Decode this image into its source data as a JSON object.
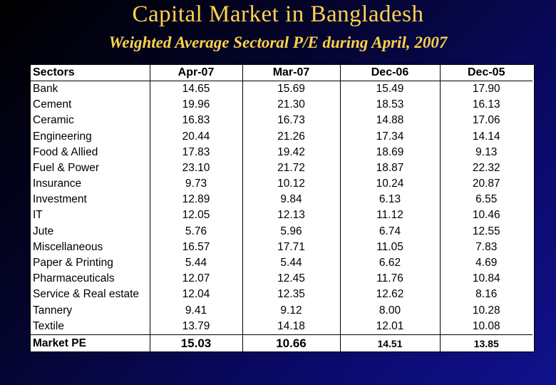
{
  "slide": {
    "title": "Capital Market in Bangladesh",
    "subtitle": "Weighted Average Sectoral P/E during April, 2007"
  },
  "table": {
    "headers": [
      "Sectors",
      "Apr-07",
      "Mar-07",
      "Dec-06",
      "Dec-05"
    ],
    "rows": [
      [
        "Bank",
        "14.65",
        "15.69",
        "15.49",
        "17.90"
      ],
      [
        "Cement",
        "19.96",
        "21.30",
        "18.53",
        "16.13"
      ],
      [
        "Ceramic",
        "16.83",
        "16.73",
        "14.88",
        "17.06"
      ],
      [
        "Engineering",
        "20.44",
        "21.26",
        "17.34",
        "14.14"
      ],
      [
        "Food & Allied",
        "17.83",
        "19.42",
        "18.69",
        "9.13"
      ],
      [
        "Fuel & Power",
        "23.10",
        "21.72",
        "18.87",
        "22.32"
      ],
      [
        "Insurance",
        "9.73",
        "10.12",
        "10.24",
        "20.87"
      ],
      [
        "Investment",
        "12.89",
        "9.84",
        "6.13",
        "6.55"
      ],
      [
        "IT",
        "12.05",
        "12.13",
        "11.12",
        "10.46"
      ],
      [
        "Jute",
        "5.76",
        "5.96",
        "6.74",
        "12.55"
      ],
      [
        "Miscellaneous",
        "16.57",
        "17.71",
        "11.05",
        "7.83"
      ],
      [
        "Paper & Printing",
        "5.44",
        "5.44",
        "6.62",
        "4.69"
      ],
      [
        "Pharmaceuticals",
        "12.07",
        "12.45",
        "11.76",
        "10.84"
      ],
      [
        "Service & Real estate",
        "12.04",
        "12.35",
        "12.62",
        "8.16"
      ],
      [
        "Tannery",
        "9.41",
        "9.12",
        "8.00",
        "10.28"
      ],
      [
        "Textile",
        "13.79",
        "14.18",
        "12.01",
        "10.08"
      ]
    ],
    "footer": [
      "Market PE",
      "15.03",
      "10.66",
      "14.51",
      "13.85"
    ]
  }
}
